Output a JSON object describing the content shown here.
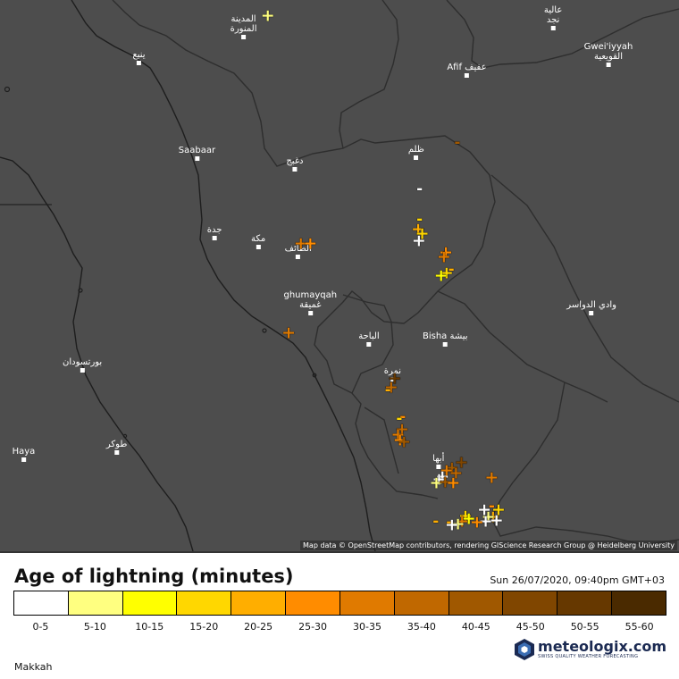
{
  "map": {
    "attribution": "Map data © OpenStreetMap contributors, rendering GIScience Research Group @ Heidelberg University",
    "colors": {
      "background": "#4d4d4d",
      "borders": "#2a2a2a"
    },
    "cities": [
      {
        "label": "المدينة\nالمنورة",
        "lon": 39.61,
        "lat": 24.47
      },
      {
        "label": "ينبع",
        "lon": 38.06,
        "lat": 24.09
      },
      {
        "label": "عالية\nنجد",
        "lon": 44.2,
        "lat": 24.6
      },
      {
        "label": "Afif عفيف",
        "lon": 42.92,
        "lat": 23.91
      },
      {
        "label": "Gwei'iyyah\nالقويعية",
        "lon": 45.02,
        "lat": 24.07
      },
      {
        "label": "ظلم",
        "lon": 42.17,
        "lat": 22.72
      },
      {
        "label": "Saabaar",
        "lon": 38.92,
        "lat": 22.7
      },
      {
        "label": "دغبج",
        "lon": 40.37,
        "lat": 22.55
      },
      {
        "label": "جدة",
        "lon": 39.18,
        "lat": 21.54
      },
      {
        "label": "مكة",
        "lon": 39.83,
        "lat": 21.42
      },
      {
        "label": "الطائف",
        "lon": 40.42,
        "lat": 21.27
      },
      {
        "label": "وادي الدواسر",
        "lon": 44.77,
        "lat": 20.46
      },
      {
        "label": "ghumayqah\nغميقة",
        "lon": 40.6,
        "lat": 20.45
      },
      {
        "label": "الباحة",
        "lon": 41.47,
        "lat": 20.0
      },
      {
        "label": "Bisha بيشة",
        "lon": 42.6,
        "lat": 20.0
      },
      {
        "label": "بورتسودان",
        "lon": 37.22,
        "lat": 19.62
      },
      {
        "label": "نمرة",
        "lon": 41.82,
        "lat": 19.5
      },
      {
        "label": "Haya",
        "lon": 36.35,
        "lat": 18.33
      },
      {
        "label": "طوكر",
        "lon": 37.73,
        "lat": 18.43
      },
      {
        "label": "أبها",
        "lon": 42.5,
        "lat": 18.22
      }
    ],
    "strike_symbols": {
      "positive": "+",
      "negative": "-"
    },
    "strikes": [
      {
        "lon": 39.97,
        "lat": 24.77,
        "age": 5,
        "sign": "+"
      },
      {
        "lon": 42.78,
        "lat": 22.92,
        "age": 40,
        "sign": "-"
      },
      {
        "lon": 42.22,
        "lat": 22.25,
        "age": 0,
        "sign": "-"
      },
      {
        "lon": 42.22,
        "lat": 21.81,
        "age": 15,
        "sign": "-"
      },
      {
        "lon": 42.2,
        "lat": 21.66,
        "age": 20,
        "sign": "+"
      },
      {
        "lon": 42.26,
        "lat": 21.6,
        "age": 15,
        "sign": "+"
      },
      {
        "lon": 42.21,
        "lat": 21.49,
        "age": 0,
        "sign": "+"
      },
      {
        "lon": 40.46,
        "lat": 21.46,
        "age": 30,
        "sign": "+"
      },
      {
        "lon": 40.6,
        "lat": 21.46,
        "age": 25,
        "sign": "+"
      },
      {
        "lon": 42.61,
        "lat": 21.33,
        "age": 25,
        "sign": "+"
      },
      {
        "lon": 42.58,
        "lat": 21.26,
        "age": 30,
        "sign": "+"
      },
      {
        "lon": 42.69,
        "lat": 21.08,
        "age": 20,
        "sign": "-"
      },
      {
        "lon": 42.62,
        "lat": 21.02,
        "age": 15,
        "sign": "+"
      },
      {
        "lon": 42.54,
        "lat": 20.99,
        "age": 10,
        "sign": "+"
      },
      {
        "lon": 40.28,
        "lat": 20.15,
        "age": 30,
        "sign": "+"
      },
      {
        "lon": 41.85,
        "lat": 19.5,
        "age": 50,
        "sign": "+"
      },
      {
        "lon": 41.8,
        "lat": 19.36,
        "age": 35,
        "sign": "+"
      },
      {
        "lon": 41.75,
        "lat": 19.33,
        "age": 20,
        "sign": "-"
      },
      {
        "lon": 41.97,
        "lat": 18.94,
        "age": 25,
        "sign": "-"
      },
      {
        "lon": 41.92,
        "lat": 18.91,
        "age": 15,
        "sign": "-"
      },
      {
        "lon": 41.96,
        "lat": 18.75,
        "age": 35,
        "sign": "+"
      },
      {
        "lon": 41.9,
        "lat": 18.68,
        "age": 30,
        "sign": "+"
      },
      {
        "lon": 41.93,
        "lat": 18.6,
        "age": 25,
        "sign": "+"
      },
      {
        "lon": 41.99,
        "lat": 18.57,
        "age": 40,
        "sign": "+"
      },
      {
        "lon": 42.84,
        "lat": 18.27,
        "age": 45,
        "sign": "+"
      },
      {
        "lon": 42.7,
        "lat": 18.2,
        "age": 40,
        "sign": "+"
      },
      {
        "lon": 42.62,
        "lat": 18.16,
        "age": 30,
        "sign": "+"
      },
      {
        "lon": 42.76,
        "lat": 18.12,
        "age": 35,
        "sign": "+"
      },
      {
        "lon": 42.56,
        "lat": 18.07,
        "age": 0,
        "sign": "+"
      },
      {
        "lon": 42.51,
        "lat": 18.02,
        "age": 0,
        "sign": "+"
      },
      {
        "lon": 42.47,
        "lat": 17.97,
        "age": 5,
        "sign": "+"
      },
      {
        "lon": 42.6,
        "lat": 17.99,
        "age": 40,
        "sign": "+"
      },
      {
        "lon": 42.72,
        "lat": 17.98,
        "age": 25,
        "sign": "+"
      },
      {
        "lon": 43.29,
        "lat": 18.05,
        "age": 30,
        "sign": "+"
      },
      {
        "lon": 43.29,
        "lat": 17.64,
        "age": 25,
        "sign": "-"
      },
      {
        "lon": 43.18,
        "lat": 17.58,
        "age": 0,
        "sign": "+"
      },
      {
        "lon": 43.39,
        "lat": 17.58,
        "age": 15,
        "sign": "+"
      },
      {
        "lon": 43.31,
        "lat": 17.48,
        "age": 20,
        "sign": "+"
      },
      {
        "lon": 43.24,
        "lat": 17.48,
        "age": 5,
        "sign": "+"
      },
      {
        "lon": 43.36,
        "lat": 17.43,
        "age": 0,
        "sign": "+"
      },
      {
        "lon": 43.2,
        "lat": 17.41,
        "age": 0,
        "sign": "+"
      },
      {
        "lon": 42.9,
        "lat": 17.5,
        "age": 15,
        "sign": "+"
      },
      {
        "lon": 42.95,
        "lat": 17.45,
        "age": 10,
        "sign": "+"
      },
      {
        "lon": 43.07,
        "lat": 17.4,
        "age": 25,
        "sign": "+"
      },
      {
        "lon": 42.85,
        "lat": 17.41,
        "age": 30,
        "sign": "+"
      },
      {
        "lon": 42.79,
        "lat": 17.38,
        "age": 5,
        "sign": "+"
      },
      {
        "lon": 42.66,
        "lat": 17.4,
        "age": 20,
        "sign": "-"
      },
      {
        "lon": 42.7,
        "lat": 17.37,
        "age": 0,
        "sign": "+"
      },
      {
        "lon": 42.46,
        "lat": 17.42,
        "age": 20,
        "sign": "-"
      }
    ]
  },
  "legend": {
    "title": "Age of lightning (minutes)",
    "date": "Sun 26/07/2020, 09:40pm GMT+03",
    "bins": [
      {
        "label": "0-5",
        "color": "#ffffff"
      },
      {
        "label": "5-10",
        "color": "#ffff80"
      },
      {
        "label": "10-15",
        "color": "#ffff00"
      },
      {
        "label": "15-20",
        "color": "#ffd700"
      },
      {
        "label": "20-25",
        "color": "#ffae00"
      },
      {
        "label": "25-30",
        "color": "#ff8c00"
      },
      {
        "label": "30-35",
        "color": "#e07a00"
      },
      {
        "label": "35-40",
        "color": "#c06800"
      },
      {
        "label": "40-45",
        "color": "#a05800"
      },
      {
        "label": "45-50",
        "color": "#804600"
      },
      {
        "label": "50-55",
        "color": "#663800"
      },
      {
        "label": "55-60",
        "color": "#4a2a00"
      }
    ],
    "region": "Makkah",
    "brand": {
      "name": "meteologix.com",
      "tagline": "SWISS QUALITY WEATHER FORECASTING",
      "color": "#1b2a52"
    }
  }
}
